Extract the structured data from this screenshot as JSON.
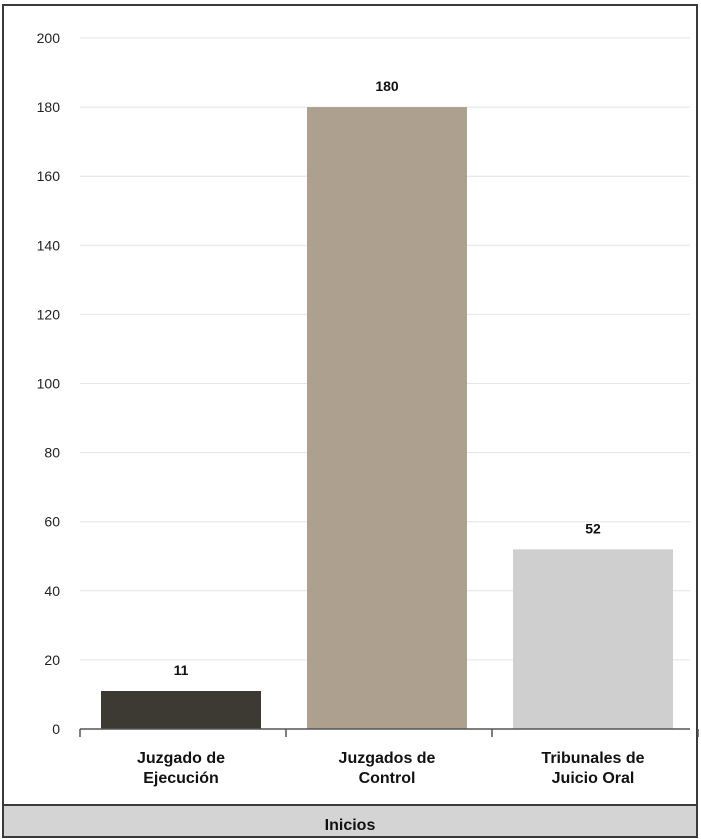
{
  "chart_data": {
    "type": "bar",
    "categories": [
      [
        "Juzgado de",
        "Ejecución"
      ],
      [
        "Juzgados de",
        "Control"
      ],
      [
        "Tribunales de",
        "Juicio Oral"
      ]
    ],
    "values": [
      11,
      180,
      52
    ],
    "data_labels": [
      "11",
      "180",
      "52"
    ],
    "colors": [
      "#3d3933",
      "#ada08e",
      "#cfcfcf"
    ],
    "ylim": [
      0,
      200
    ],
    "yticks": [
      0,
      20,
      40,
      60,
      80,
      100,
      120,
      140,
      160,
      180,
      200
    ],
    "grid": true,
    "footer_label": "Inicios"
  }
}
